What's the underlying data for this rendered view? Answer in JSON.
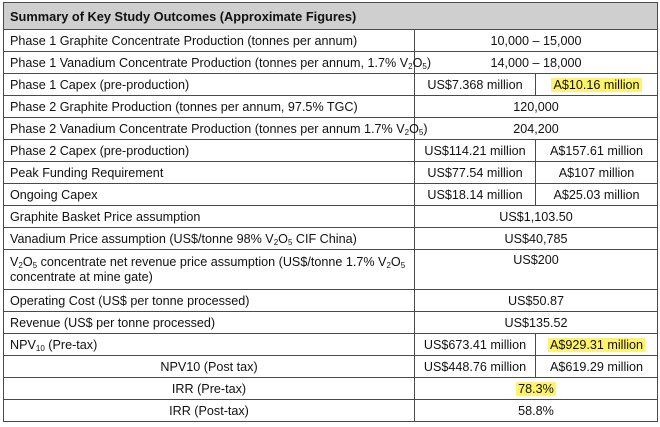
{
  "title": "Summary of Key Study Outcomes (Approximate Figures)",
  "highlight_color": "#fff36b",
  "rows": [
    {
      "label_parts": [
        "Phase 1 Graphite Concentrate Production (tonnes per annum)"
      ],
      "value": "10,000 – 15,000"
    },
    {
      "label_parts": [
        "Phase 1 Vanadium Concentrate Production (tonnes per annum, 1.7% V",
        "2",
        "O",
        "5",
        ")"
      ],
      "value": "14,000 – 18,000"
    },
    {
      "label_parts": [
        "Phase 1 Capex (pre-production)"
      ],
      "value_usd": "US$7.368 million",
      "value_aud": "A$10.16 million"
    },
    {
      "label_parts": [
        "Phase 2 Graphite Production (tonnes per annum, 97.5% TGC)"
      ],
      "value": "120,000"
    },
    {
      "label_parts": [
        "Phase 2 Vanadium Concentrate Production (tonnes per annum 1.7% V",
        "2",
        "O",
        "5",
        ")"
      ],
      "value": "204,200"
    },
    {
      "label_parts": [
        "Phase 2 Capex (pre-production)"
      ],
      "value_usd": "US$114.21 million",
      "value_aud": "A$157.61 million"
    },
    {
      "label_parts": [
        "Peak Funding Requirement"
      ],
      "value_usd": "US$77.54 million",
      "value_aud": "A$107 million"
    },
    {
      "label_parts": [
        "Ongoing Capex"
      ],
      "value_usd": "US$18.14 million",
      "value_aud": "A$25.03 million"
    },
    {
      "label_parts": [
        "Graphite Basket Price assumption"
      ],
      "value": "US$1,103.50"
    },
    {
      "label_parts": [
        "Vanadium Price assumption (US$/tonne 98% V",
        "2",
        "O",
        "5",
        " CIF China)"
      ],
      "value": "US$40,785"
    },
    {
      "label_parts": [
        "V",
        "2",
        "O",
        "5",
        " concentrate net revenue price assumption (US$/tonne 1.7% V",
        "2",
        "O",
        "5",
        " concentrate at mine gate)"
      ],
      "value": "US$200"
    },
    {
      "label_parts": [
        "Operating Cost (US$ per tonne processed)"
      ],
      "value": "US$50.87"
    },
    {
      "label_parts": [
        "Revenue (US$ per tonne processed)"
      ],
      "value": "US$135.52"
    },
    {
      "label_parts": [
        "NPV",
        "10",
        " (Pre-tax)"
      ],
      "value_usd": "US$673.41 million",
      "value_aud": "A$929.31 million"
    },
    {
      "label_parts": [
        "NPV10 (Post tax)"
      ],
      "value_usd": "US$448.76 million",
      "value_aud": "A$619.29 million"
    },
    {
      "label_parts": [
        "IRR (Pre-tax)"
      ],
      "value": "78.3%"
    },
    {
      "label_parts": [
        "IRR (Post-tax)"
      ],
      "value": "58.8%"
    }
  ]
}
